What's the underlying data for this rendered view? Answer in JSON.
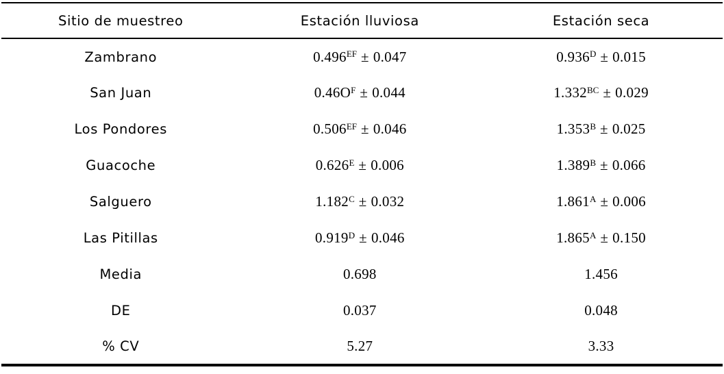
{
  "symbols": {
    "plus_minus": "±"
  },
  "table": {
    "columns": [
      "Sitio de muestreo",
      "Estación lluviosa",
      "Estación seca"
    ],
    "rows": [
      {
        "site": "Zambrano",
        "rainy": {
          "value": "0.496",
          "sup": "EF",
          "err": "0.047"
        },
        "dry": {
          "value": "0.936",
          "sup": "D",
          "err": "0.015"
        }
      },
      {
        "site": "San Juan",
        "rainy": {
          "value": "0.46O",
          "sup": "F",
          "err": "0.044"
        },
        "dry": {
          "value": "1.332",
          "sup": "BC",
          "err": "0.029"
        }
      },
      {
        "site": "Los Pondores",
        "rainy": {
          "value": "0.506",
          "sup": "EF",
          "err": "0.046"
        },
        "dry": {
          "value": "1.353",
          "sup": "B",
          "err": "0.025"
        }
      },
      {
        "site": "Guacoche",
        "rainy": {
          "value": "0.626",
          "sup": "E",
          "err": "0.006"
        },
        "dry": {
          "value": "1.389",
          "sup": "B",
          "err": "0.066"
        }
      },
      {
        "site": "Salguero",
        "rainy": {
          "value": "1.182",
          "sup": "C",
          "err": "0.032"
        },
        "dry": {
          "value": "1.861",
          "sup": "A",
          "err": "0.006"
        }
      },
      {
        "site": "Las Pitillas",
        "rainy": {
          "value": "0.919",
          "sup": "D",
          "err": "0.046"
        },
        "dry": {
          "value": "1.865",
          "sup": "A",
          "err": "0.150"
        }
      }
    ],
    "summary_rows": [
      {
        "label": "Media",
        "rainy": "0.698",
        "dry": "1.456"
      },
      {
        "label": "DE",
        "rainy": "0.037",
        "dry": "0.048"
      },
      {
        "label": "% CV",
        "rainy": "5.27",
        "dry": "3.33"
      }
    ]
  }
}
